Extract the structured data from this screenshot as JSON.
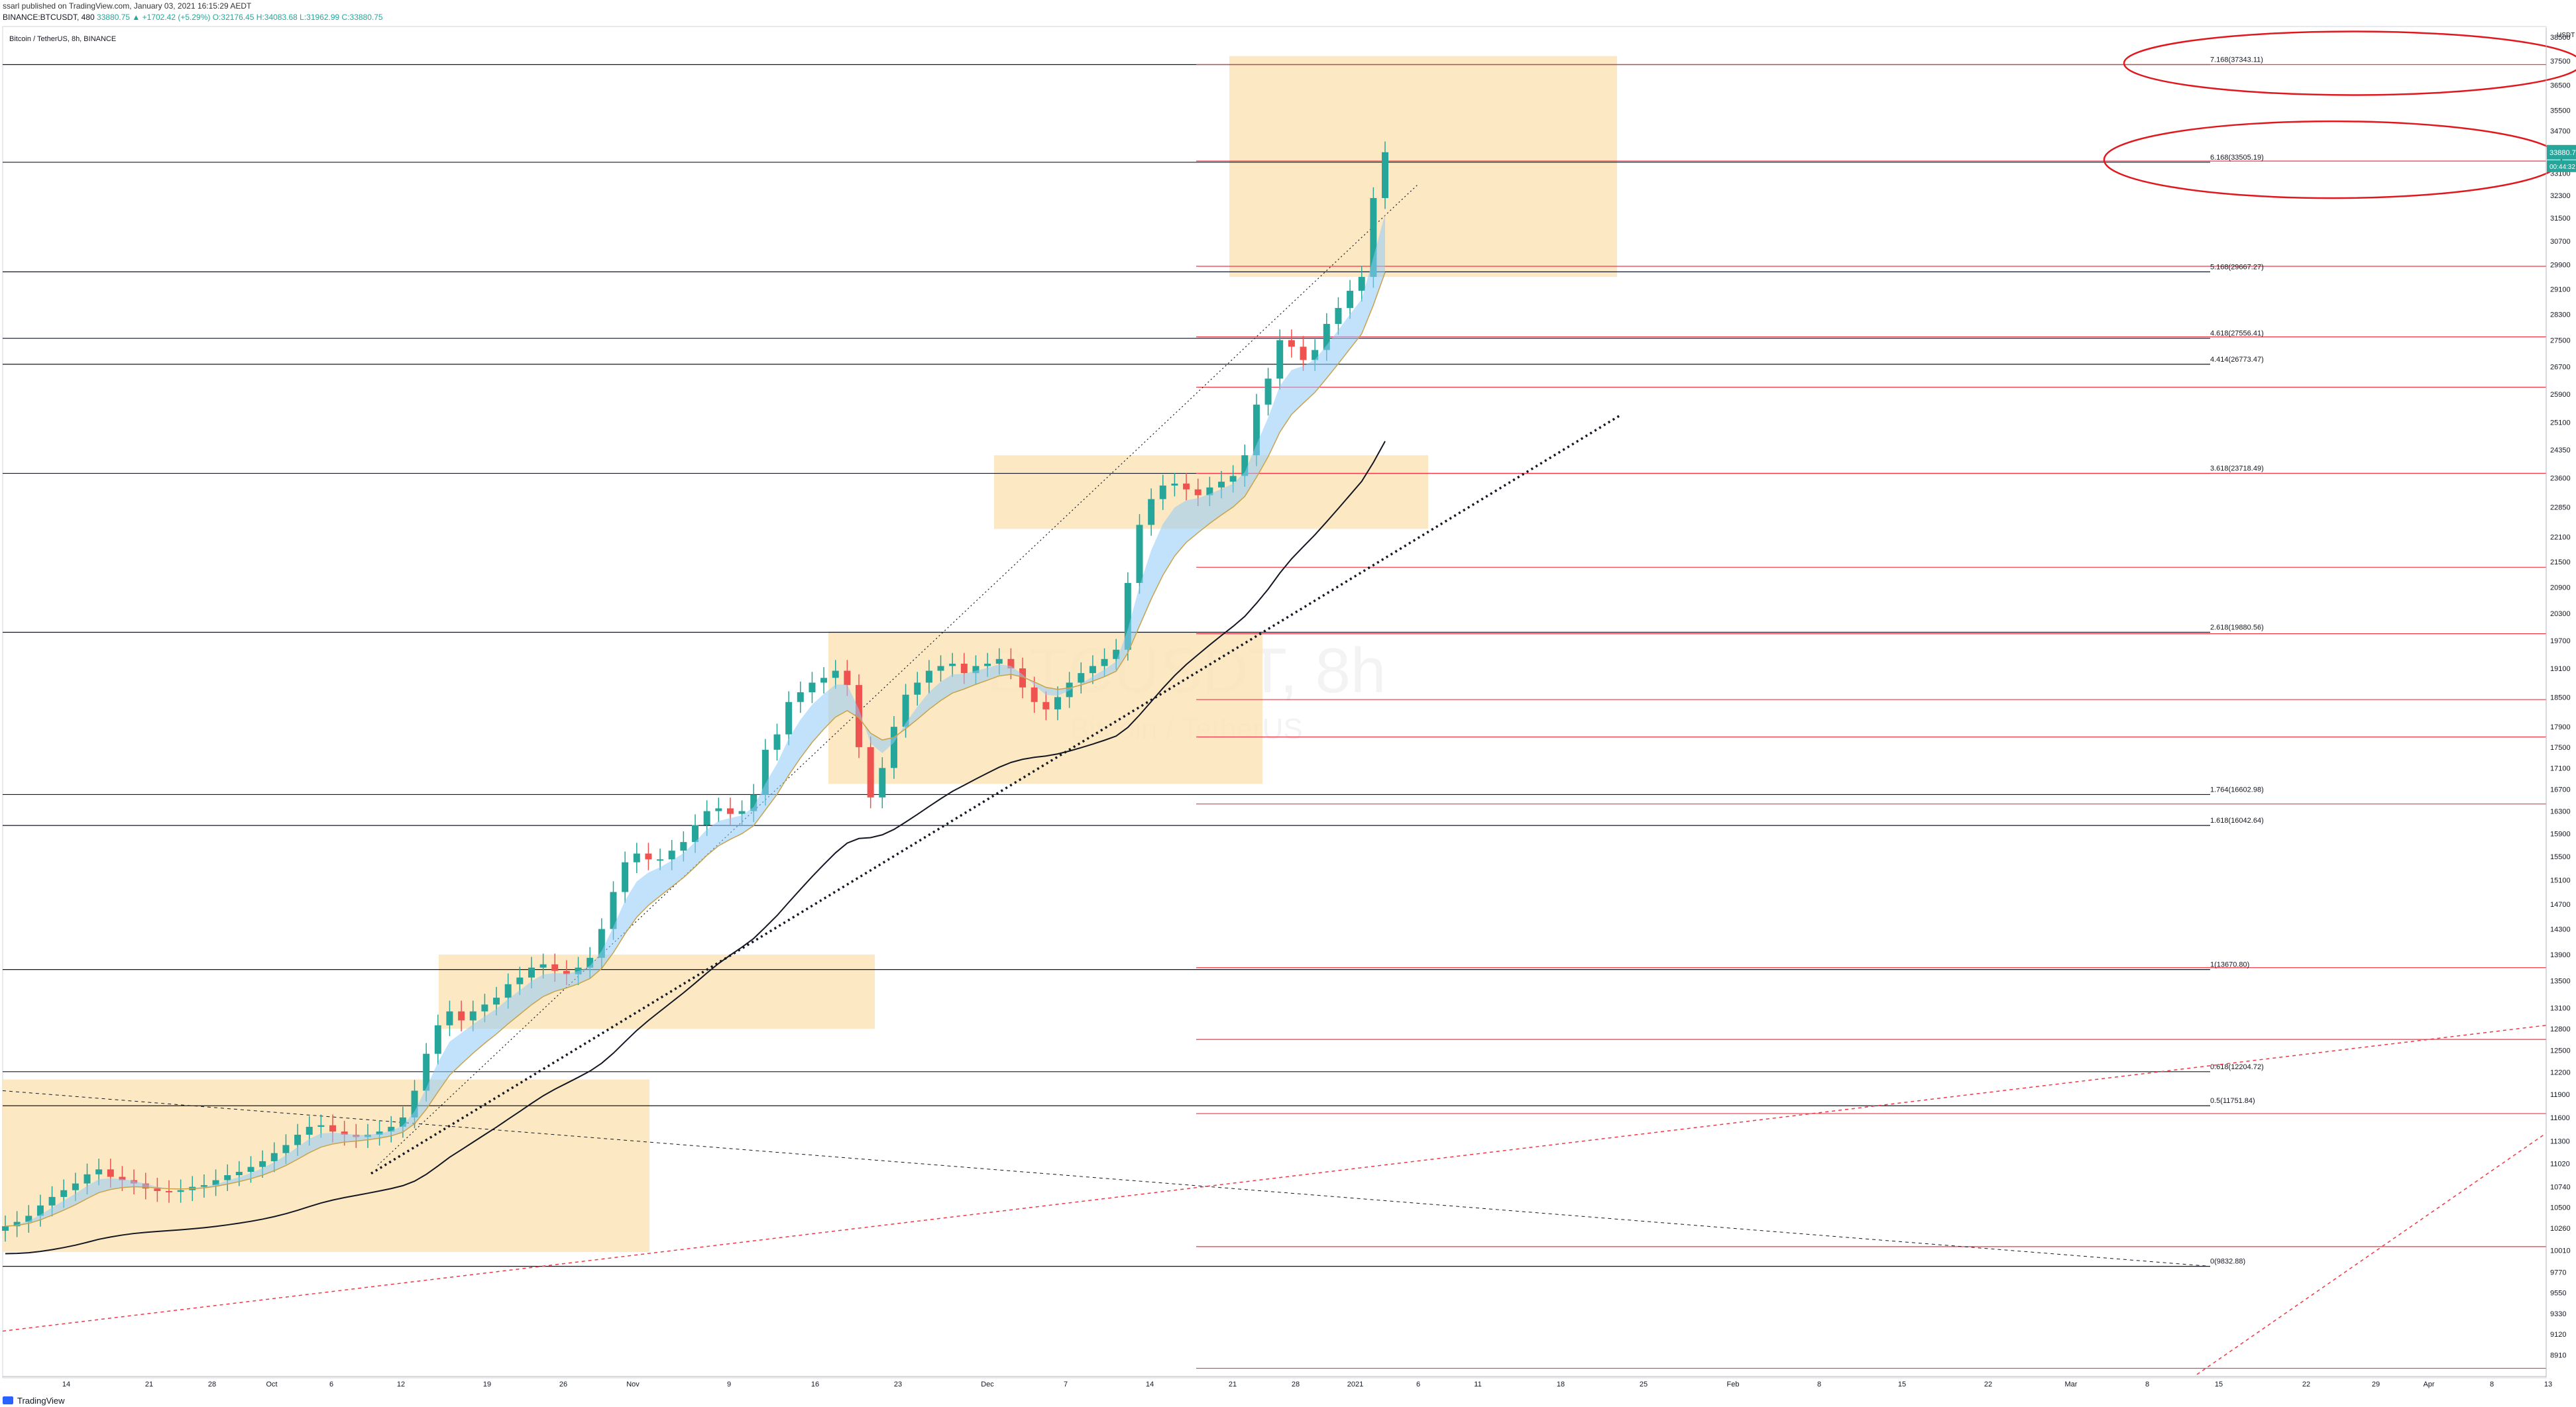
{
  "header": {
    "published": "ssarl published on TradingView.com, January 03, 2021 16:15:29 AEDT",
    "symbol_line": "BINANCE:BTCUSDT, 480",
    "ohlc": "33880.75 ▲ +1702.42 (+5.29%) O:32176.45 H:34083.68 L:31962.99 C:33880.75",
    "legend": "Bitcoin / TetherUS, 8h, BINANCE"
  },
  "watermark": {
    "title": "BTCUSDT, 8h",
    "subtitle": "Bitcoin / TetherUS"
  },
  "footer": {
    "brand": "TradingView"
  },
  "colors": {
    "up": "#26a69a",
    "down": "#ef5350",
    "fib": "#f23645",
    "hline": "#131722",
    "box": "#fbe3b5",
    "ribbon": "#90caf9",
    "price_tag": "#26a69a"
  },
  "chart_data": {
    "type": "candlestick",
    "title": "Bitcoin / TetherUS, 8h, BINANCE",
    "y_axis_label": "USDT",
    "ylim": [
      8700,
      38900
    ],
    "y_ticks": [
      8910,
      9120,
      9330,
      9550,
      9770,
      10010,
      10260,
      10500,
      10740,
      11020,
      11300,
      11600,
      11900,
      12200,
      12500,
      12800,
      13100,
      13500,
      13900,
      14300,
      14700,
      15100,
      15500,
      15900,
      16300,
      16700,
      17100,
      17500,
      17900,
      18500,
      19100,
      19700,
      20300,
      20900,
      21500,
      22100,
      22850,
      23600,
      24350,
      25100,
      25900,
      26700,
      27500,
      28300,
      29100,
      29900,
      30700,
      31500,
      32300,
      33100,
      34700,
      35500,
      36500,
      37500,
      38500
    ],
    "x_ticks": [
      "14",
      "21",
      "28",
      "Oct",
      "6",
      "12",
      "19",
      "26",
      "Nov",
      "9",
      "16",
      "23",
      "Dec",
      "7",
      "14",
      "21",
      "28",
      "2021",
      "6",
      "11",
      "18",
      "25",
      "Feb",
      "8",
      "15",
      "22",
      "Mar",
      "8",
      "15",
      "22",
      "29",
      "Apr",
      "8",
      "13"
    ],
    "last_price": "33880.75",
    "countdown": "00:44:32",
    "closes": [
      10280,
      10330,
      10400,
      10520,
      10620,
      10700,
      10780,
      10890,
      10950,
      10860,
      10820,
      10780,
      10720,
      10690,
      10680,
      10700,
      10740,
      10760,
      10820,
      10880,
      10920,
      10980,
      11050,
      11150,
      11250,
      11380,
      11480,
      11500,
      11420,
      11380,
      11350,
      11380,
      11420,
      11480,
      11600,
      11950,
      12450,
      12850,
      13050,
      12920,
      13050,
      13150,
      13250,
      13450,
      13550,
      13700,
      13750,
      13650,
      13600,
      13700,
      13850,
      14300,
      14900,
      15400,
      15550,
      15450,
      15450,
      15600,
      15750,
      16050,
      16300,
      16350,
      16250,
      16300,
      16600,
      17450,
      17750,
      18400,
      18600,
      18800,
      18900,
      19050,
      18750,
      17500,
      16550,
      17100,
      17900,
      18550,
      18800,
      19050,
      19150,
      19200,
      19000,
      19150,
      19200,
      19300,
      19100,
      18700,
      18400,
      18250,
      18500,
      18800,
      19000,
      19150,
      19300,
      19500,
      21000,
      22400,
      23050,
      23400,
      23450,
      23300,
      23150,
      23350,
      23500,
      23650,
      24200,
      25600,
      26350,
      27500,
      27300,
      26900,
      27200,
      28000,
      28500,
      29050,
      29500,
      32200,
      33880.75
    ],
    "fibonacci": [
      {
        "label": "0(9832.88)",
        "value": 9832.88
      },
      {
        "label": "0.5(11751.84)",
        "value": 11751.84
      },
      {
        "label": "0.618(12204.72)",
        "value": 12204.72
      },
      {
        "label": "1(13670.80)",
        "value": 13670.8
      },
      {
        "label": "1.618(16042.64)",
        "value": 16042.64
      },
      {
        "label": "1.764(16602.98)",
        "value": 16602.98
      },
      {
        "label": "2.618(19880.56)",
        "value": 19880.56
      },
      {
        "label": "3.618(23718.49)",
        "value": 23718.49
      },
      {
        "label": "4.414(26773.47)",
        "value": 26773.47
      },
      {
        "label": "4.618(27556.41)",
        "value": 27556.41
      },
      {
        "label": "5.168(29667.27)",
        "value": 29667.27
      },
      {
        "label": "6.168(33505.19)",
        "value": 33505.19
      },
      {
        "label": "7.168(37343.11)",
        "value": 37343.11
      }
    ]
  }
}
